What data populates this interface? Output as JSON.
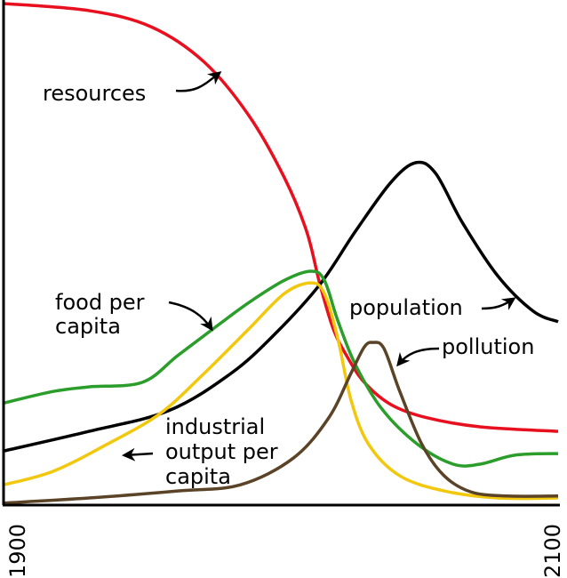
{
  "chart_data": {
    "type": "line",
    "title": "",
    "xlabel": "",
    "ylabel": "",
    "xlim": [
      1900,
      2100
    ],
    "ylim": [
      0,
      100
    ],
    "x_tick_labels": [
      "1900",
      "2100"
    ],
    "grid": false,
    "legend": "none (inline labels with arrows)",
    "series": [
      {
        "name": "resources",
        "color": "#e8101e",
        "points": [
          [
            1900,
            99.3
          ],
          [
            1930.8,
            97.9
          ],
          [
            1953.2,
            94.7
          ],
          [
            1972.4,
            87.7
          ],
          [
            1988.5,
            77.1
          ],
          [
            2001.3,
            64.8
          ],
          [
            2009.3,
            54.2
          ],
          [
            2014.1,
            43.7
          ],
          [
            2018.9,
            34.9
          ],
          [
            2023.7,
            29.6
          ],
          [
            2030.1,
            24.3
          ],
          [
            2039.7,
            19.9
          ],
          [
            2052.6,
            17.3
          ],
          [
            2071.8,
            15.5
          ],
          [
            2100,
            14.6
          ]
        ]
      },
      {
        "name": "population",
        "color": "#000000",
        "points": [
          [
            1900,
            10.7
          ],
          [
            1930.8,
            14.6
          ],
          [
            1959.6,
            18.7
          ],
          [
            1982.1,
            26.1
          ],
          [
            1998.1,
            34.0
          ],
          [
            2014.1,
            43.7
          ],
          [
            2026.9,
            54.2
          ],
          [
            2039.7,
            63.9
          ],
          [
            2048.7,
            67.8
          ],
          [
            2055.8,
            65.7
          ],
          [
            2065.4,
            56.0
          ],
          [
            2078.2,
            45.4
          ],
          [
            2091.0,
            38.4
          ],
          [
            2100,
            36.3
          ]
        ]
      },
      {
        "name": "food per capita",
        "color": "#2a9d2a",
        "points": [
          [
            1900,
            20.2
          ],
          [
            1917.9,
            22.5
          ],
          [
            1930.8,
            23.4
          ],
          [
            1950.0,
            24.3
          ],
          [
            1962.8,
            29.6
          ],
          [
            1975.6,
            34.9
          ],
          [
            1988.5,
            40.1
          ],
          [
            2001.3,
            44.5
          ],
          [
            2010.9,
            46.3
          ],
          [
            2015.7,
            44.5
          ],
          [
            2020.5,
            36.6
          ],
          [
            2026.9,
            27.8
          ],
          [
            2036.5,
            19.0
          ],
          [
            2049.4,
            12.0
          ],
          [
            2062.2,
            8.1
          ],
          [
            2071.8,
            8.1
          ],
          [
            2084.6,
            9.9
          ],
          [
            2100,
            10.2
          ]
        ]
      },
      {
        "name": "industrial output per capita",
        "color": "#f2c80f",
        "points": [
          [
            1900,
            4.0
          ],
          [
            1917.9,
            6.7
          ],
          [
            1937.2,
            12.0
          ],
          [
            1956.4,
            18.1
          ],
          [
            1972.4,
            26.1
          ],
          [
            1988.5,
            34.9
          ],
          [
            2001.3,
            41.9
          ],
          [
            2010.9,
            44.0
          ],
          [
            2015.7,
            41.9
          ],
          [
            2020.5,
            33.1
          ],
          [
            2025.3,
            20.8
          ],
          [
            2031.7,
            12.0
          ],
          [
            2042.9,
            5.8
          ],
          [
            2058.9,
            2.8
          ],
          [
            2078.2,
            1.4
          ],
          [
            2100,
            1.4
          ]
        ]
      },
      {
        "name": "pollution",
        "color": "#5a4326",
        "points": [
          [
            1900,
            0.4
          ],
          [
            1930.8,
            1.4
          ],
          [
            1962.8,
            2.8
          ],
          [
            1985.3,
            4.0
          ],
          [
            2004.5,
            9.3
          ],
          [
            2017.3,
            17.3
          ],
          [
            2025.3,
            26.1
          ],
          [
            2030.1,
            31.3
          ],
          [
            2033.3,
            32.2
          ],
          [
            2037.2,
            31.0
          ],
          [
            2042.9,
            22.5
          ],
          [
            2050.9,
            12.0
          ],
          [
            2058.9,
            5.8
          ],
          [
            2068.6,
            2.6
          ],
          [
            2081.4,
            1.8
          ],
          [
            2100,
            1.8
          ]
        ]
      }
    ],
    "annotations": {
      "resources": [
        "resources"
      ],
      "food": [
        "food per",
        "capita"
      ],
      "population": [
        "population"
      ],
      "pollution": [
        "pollution"
      ],
      "industrial": [
        "industrial",
        "output per",
        "capita"
      ]
    }
  }
}
